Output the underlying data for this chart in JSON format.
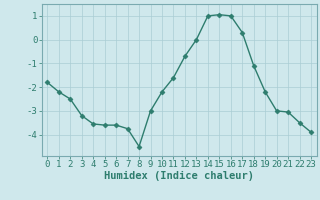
{
  "xlabel": "Humidex (Indice chaleur)",
  "x": [
    0,
    1,
    2,
    3,
    4,
    5,
    6,
    7,
    8,
    9,
    10,
    11,
    12,
    13,
    14,
    15,
    16,
    17,
    18,
    19,
    20,
    21,
    22,
    23
  ],
  "y": [
    -1.8,
    -2.2,
    -2.5,
    -3.2,
    -3.55,
    -3.6,
    -3.6,
    -3.75,
    -4.5,
    -3.0,
    -2.2,
    -1.6,
    -0.7,
    0.0,
    1.0,
    1.05,
    1.0,
    0.3,
    -1.1,
    -2.2,
    -3.0,
    -3.05,
    -3.5,
    -3.9
  ],
  "line_color": "#2e7d6e",
  "marker": "D",
  "markersize": 2.5,
  "linewidth": 1.0,
  "bg_color": "#cfe8ec",
  "grid_color": "#aacdd4",
  "spine_color": "#7aaab0",
  "ylim": [
    -4.9,
    1.5
  ],
  "yticks": [
    -4,
    -3,
    -2,
    -1,
    0,
    1
  ],
  "xticks": [
    0,
    1,
    2,
    3,
    4,
    5,
    6,
    7,
    8,
    9,
    10,
    11,
    12,
    13,
    14,
    15,
    16,
    17,
    18,
    19,
    20,
    21,
    22,
    23
  ],
  "tick_fontsize": 6.5,
  "xlabel_fontsize": 7.5,
  "tick_color": "#2e7d6e",
  "xlabel_color": "#2e7d6e"
}
